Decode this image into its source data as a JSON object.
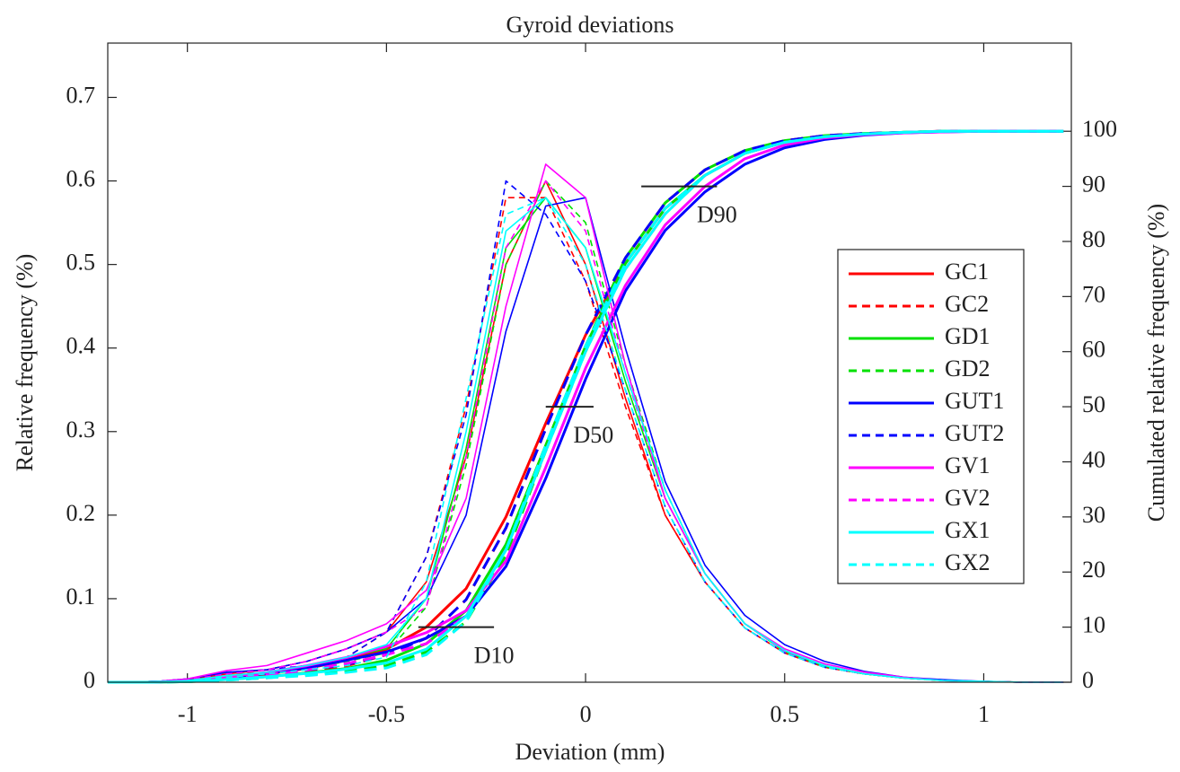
{
  "chart_data": {
    "type": "line",
    "title": "Gyroid deviations",
    "xlabel": "Deviation (mm)",
    "ylabel": "Relative frequency (%)",
    "y2label": "Cumulated relative frequency (%)",
    "x": [
      -1.2,
      -1.1,
      -1.0,
      -0.9,
      -0.8,
      -0.7,
      -0.6,
      -0.5,
      -0.4,
      -0.3,
      -0.2,
      -0.1,
      0,
      0.1,
      0.2,
      0.3,
      0.4,
      0.5,
      0.6,
      0.7,
      0.8,
      0.9,
      1.0,
      1.1,
      1.2
    ],
    "xlim": [
      -1.2,
      1.22
    ],
    "xticks": [
      -1,
      -0.5,
      0,
      0.5,
      1
    ],
    "ylim": [
      0,
      0.765
    ],
    "yticks": [
      0,
      0.1,
      0.2,
      0.3,
      0.4,
      0.5,
      0.6,
      0.7
    ],
    "y2lim": [
      0,
      116
    ],
    "y2ticks": [
      0,
      10,
      20,
      30,
      40,
      50,
      60,
      70,
      80,
      90,
      100
    ],
    "legend": "right",
    "series": [
      {
        "name": "GC1",
        "color": "#ff0000",
        "dashed": false,
        "values": [
          0,
          0,
          0.003,
          0.01,
          0.015,
          0.025,
          0.04,
          0.06,
          0.12,
          0.27,
          0.5,
          0.6,
          0.5,
          0.34,
          0.2,
          0.12,
          0.065,
          0.035,
          0.018,
          0.01,
          0.005,
          0.002,
          0.001,
          0,
          0
        ],
        "cumulative": {
          "axis": "y2",
          "values": [
            0,
            0,
            0.2,
            0.8,
            1.5,
            2.5,
            4,
            6,
            10,
            17,
            30,
            47,
            63,
            76,
            86,
            92,
            96,
            98,
            99,
            99.5,
            99.8,
            100,
            100,
            100,
            100
          ]
        }
      },
      {
        "name": "GC2",
        "color": "#ff0000",
        "dashed": true,
        "values": [
          0,
          0,
          0.003,
          0.01,
          0.012,
          0.02,
          0.03,
          0.06,
          0.15,
          0.33,
          0.58,
          0.58,
          0.48,
          0.33,
          0.2,
          0.12,
          0.065,
          0.035,
          0.018,
          0.01,
          0.005,
          0.002,
          0.001,
          0,
          0
        ],
        "cumulative": {
          "axis": "y2",
          "values": [
            0,
            0,
            0.2,
            0.7,
            1.3,
            2,
            3,
            5,
            8,
            15,
            28,
            46,
            63,
            77,
            87,
            93,
            96.5,
            98.3,
            99.2,
            99.6,
            99.8,
            100,
            100,
            100,
            100
          ]
        }
      },
      {
        "name": "GD1",
        "color": "#00e000",
        "dashed": false,
        "values": [
          0,
          0,
          0.002,
          0.008,
          0.012,
          0.02,
          0.03,
          0.04,
          0.1,
          0.28,
          0.52,
          0.58,
          0.52,
          0.36,
          0.22,
          0.13,
          0.07,
          0.037,
          0.019,
          0.01,
          0.005,
          0.002,
          0.001,
          0,
          0
        ],
        "cumulative": {
          "axis": "y2",
          "values": [
            0,
            0,
            0.1,
            0.5,
            1,
            1.7,
            2.5,
            4,
            7,
            13,
            25,
            43,
            61,
            76,
            86,
            92,
            96,
            98,
            99,
            99.5,
            99.8,
            100,
            100,
            100,
            100
          ]
        }
      },
      {
        "name": "GD2",
        "color": "#00e000",
        "dashed": true,
        "values": [
          0,
          0,
          0.002,
          0.006,
          0.01,
          0.016,
          0.025,
          0.035,
          0.09,
          0.26,
          0.5,
          0.6,
          0.55,
          0.38,
          0.23,
          0.13,
          0.07,
          0.038,
          0.02,
          0.01,
          0.005,
          0.002,
          0.001,
          0,
          0
        ],
        "cumulative": {
          "axis": "y2",
          "values": [
            0,
            0,
            0.1,
            0.4,
            0.8,
            1.4,
            2,
            3,
            5.5,
            11,
            23,
            42,
            61,
            77,
            87,
            93,
            96.5,
            98.3,
            99.2,
            99.6,
            99.8,
            100,
            100,
            100,
            100
          ]
        }
      },
      {
        "name": "GUT1",
        "color": "#0000ff",
        "dashed": false,
        "values": [
          0,
          0,
          0.004,
          0.012,
          0.015,
          0.025,
          0.04,
          0.06,
          0.1,
          0.2,
          0.42,
          0.57,
          0.58,
          0.4,
          0.24,
          0.14,
          0.08,
          0.045,
          0.025,
          0.013,
          0.006,
          0.003,
          0.001,
          0,
          0
        ],
        "cumulative": {
          "axis": "y2",
          "values": [
            0,
            0,
            0.2,
            0.9,
            1.6,
            2.6,
            4,
            5.5,
            8,
            12,
            21,
            37,
            55,
            71,
            82,
            89,
            94,
            97,
            98.5,
            99.3,
            99.7,
            99.9,
            100,
            100,
            100
          ]
        }
      },
      {
        "name": "GUT2",
        "color": "#0000ff",
        "dashed": true,
        "values": [
          0,
          0,
          0.004,
          0.012,
          0.015,
          0.02,
          0.03,
          0.06,
          0.15,
          0.32,
          0.6,
          0.56,
          0.48,
          0.35,
          0.21,
          0.12,
          0.065,
          0.035,
          0.018,
          0.01,
          0.005,
          0.002,
          0.001,
          0,
          0
        ],
        "cumulative": {
          "axis": "y2",
          "values": [
            0,
            0,
            0.2,
            0.8,
            1.4,
            2.2,
            3.2,
            5,
            8,
            15,
            28,
            46,
            63,
            77,
            87,
            93,
            96.5,
            98.3,
            99.2,
            99.6,
            99.8,
            100,
            100,
            100,
            100
          ]
        }
      },
      {
        "name": "GV1",
        "color": "#ff00ff",
        "dashed": false,
        "values": [
          0,
          0,
          0.004,
          0.014,
          0.02,
          0.035,
          0.05,
          0.07,
          0.11,
          0.22,
          0.45,
          0.62,
          0.58,
          0.38,
          0.22,
          0.13,
          0.07,
          0.04,
          0.022,
          0.012,
          0.006,
          0.002,
          0.001,
          0,
          0
        ],
        "cumulative": {
          "axis": "y2",
          "values": [
            0,
            0,
            0.2,
            1,
            1.8,
            3,
            4.5,
            6.5,
            9,
            13,
            22,
            39,
            57,
            72,
            83,
            90,
            95,
            97.5,
            98.8,
            99.4,
            99.7,
            99.9,
            100,
            100,
            100
          ]
        }
      },
      {
        "name": "GV2",
        "color": "#ff00ff",
        "dashed": true,
        "values": [
          0,
          0,
          0.003,
          0.01,
          0.015,
          0.025,
          0.04,
          0.06,
          0.09,
          0.27,
          0.52,
          0.6,
          0.54,
          0.37,
          0.22,
          0.13,
          0.07,
          0.037,
          0.02,
          0.01,
          0.005,
          0.002,
          0.001,
          0,
          0
        ],
        "cumulative": {
          "axis": "y2",
          "values": [
            0,
            0,
            0.2,
            0.7,
            1.3,
            2.2,
            3.4,
            5,
            7,
            12,
            24,
            42,
            60,
            75,
            85,
            92,
            96,
            98,
            99,
            99.5,
            99.8,
            100,
            100,
            100,
            100
          ]
        }
      },
      {
        "name": "GX1",
        "color": "#00ffff",
        "dashed": false,
        "values": [
          0,
          0,
          0.002,
          0.008,
          0.012,
          0.02,
          0.03,
          0.045,
          0.1,
          0.3,
          0.54,
          0.58,
          0.52,
          0.37,
          0.23,
          0.13,
          0.07,
          0.038,
          0.02,
          0.01,
          0.005,
          0.002,
          0.001,
          0,
          0
        ],
        "cumulative": {
          "axis": "y2",
          "values": [
            0,
            0,
            0.1,
            0.5,
            1,
            1.6,
            2.4,
            3.5,
            6,
            12,
            24,
            42,
            60,
            75,
            85,
            92,
            96,
            98,
            99,
            99.5,
            99.8,
            100,
            100,
            100,
            100
          ]
        }
      },
      {
        "name": "GX2",
        "color": "#00ffff",
        "dashed": true,
        "values": [
          0,
          0,
          0.002,
          0.006,
          0.01,
          0.015,
          0.02,
          0.03,
          0.12,
          0.34,
          0.56,
          0.58,
          0.5,
          0.35,
          0.21,
          0.12,
          0.065,
          0.035,
          0.018,
          0.01,
          0.005,
          0.002,
          0.001,
          0,
          0
        ],
        "cumulative": {
          "axis": "y2",
          "values": [
            0,
            0,
            0.1,
            0.4,
            0.8,
            1.2,
            1.8,
            2.6,
            5,
            11,
            24,
            43,
            61,
            76,
            86,
            92,
            96,
            98,
            99,
            99.5,
            99.8,
            100,
            100,
            100,
            100
          ]
        }
      }
    ],
    "annotations": [
      {
        "label": "D10",
        "y2": 10,
        "x": [
          -0.42,
          -0.23
        ]
      },
      {
        "label": "D50",
        "y2": 50,
        "x": [
          -0.1,
          0.02
        ]
      },
      {
        "label": "D90",
        "y2": 90,
        "x": [
          0.14,
          0.33
        ]
      }
    ]
  }
}
